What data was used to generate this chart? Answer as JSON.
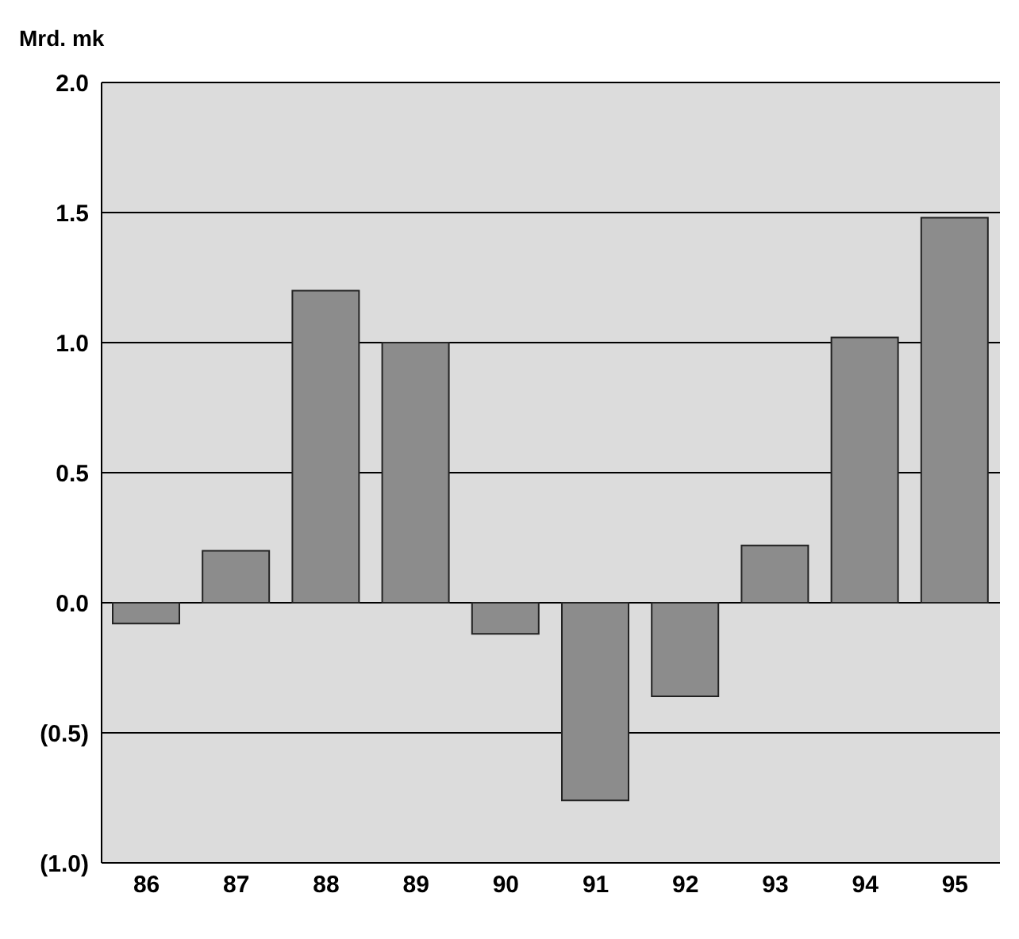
{
  "chart_data": {
    "type": "bar",
    "ylabel": "Mrd. mk",
    "categories": [
      "86",
      "87",
      "88",
      "89",
      "90",
      "91",
      "92",
      "93",
      "94",
      "95"
    ],
    "values": [
      -0.08,
      0.2,
      1.2,
      1.0,
      -0.12,
      -0.76,
      -0.36,
      0.22,
      1.02,
      1.48
    ],
    "color": "#8c8c8c",
    "ylim": [
      -1,
      2
    ],
    "yticks": [
      {
        "value": -1,
        "label": "(1.0)"
      },
      {
        "value": -0.5,
        "label": "(0.5)"
      },
      {
        "value": 0,
        "label": "0.0"
      },
      {
        "value": 0.5,
        "label": "0.5"
      },
      {
        "value": 1,
        "label": "1.0"
      },
      {
        "value": 1.5,
        "label": "1.5"
      },
      {
        "value": 2,
        "label": "2.0"
      }
    ],
    "grid": "y"
  }
}
